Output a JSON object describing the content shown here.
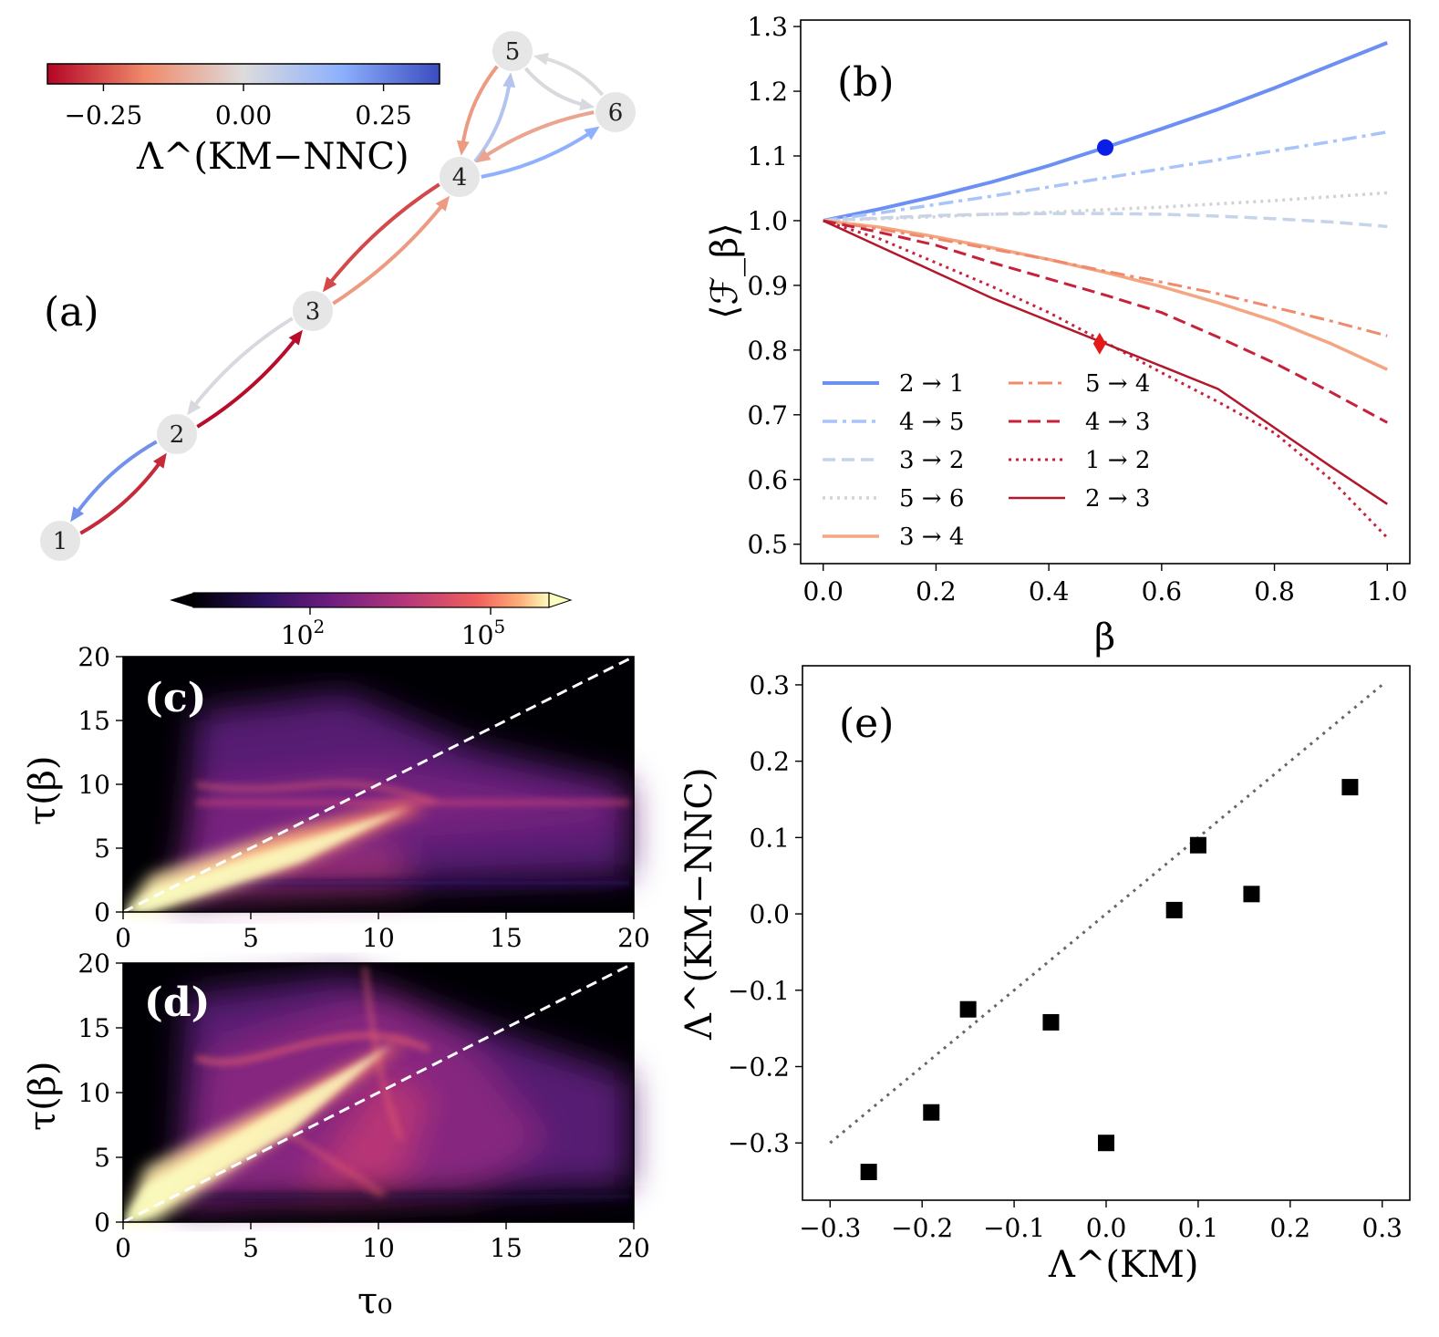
{
  "panel_a": {
    "label": "(a)",
    "colorbar_label": "Λ^(KM−NNC)",
    "colorbar_ticks": [
      "−0.25",
      "0.00",
      "0.25"
    ],
    "colorbar_range": [
      -0.35,
      0.35
    ]
  },
  "magma_colorbar": {
    "ticks": [
      "10^2",
      "10^5"
    ]
  },
  "colors": {
    "blue_strong": "#6b8ff2",
    "blue_mid": "#a9c4f7",
    "blue_pale": "#c6d4ea",
    "grey": "#cfd2d8",
    "orange": "#f4a582",
    "orange_mid": "#ef8a6c",
    "red_mid": "#c7223b",
    "red_dark": "#b2182b"
  },
  "chart_data": [
    {
      "type": "network",
      "title": "(a)",
      "nodes": [
        "1",
        "2",
        "3",
        "4",
        "5",
        "6"
      ],
      "edges": [
        {
          "from": "1",
          "to": "2",
          "value": -0.3
        },
        {
          "from": "2",
          "to": "1",
          "value": 0.23
        },
        {
          "from": "2",
          "to": "3",
          "value": -0.34
        },
        {
          "from": "3",
          "to": "2",
          "value": 0.01
        },
        {
          "from": "3",
          "to": "4",
          "value": -0.14
        },
        {
          "from": "4",
          "to": "3",
          "value": -0.26
        },
        {
          "from": "4",
          "to": "5",
          "value": 0.09
        },
        {
          "from": "5",
          "to": "4",
          "value": -0.14
        },
        {
          "from": "4",
          "to": "6",
          "value": 0.17
        },
        {
          "from": "6",
          "to": "4",
          "value": -0.12
        },
        {
          "from": "5",
          "to": "6",
          "value": 0.01
        },
        {
          "from": "6",
          "to": "5",
          "value": 0.0
        }
      ]
    },
    {
      "type": "line",
      "title": "(b)",
      "xlabel": "β",
      "ylabel": "⟨ℱ_β⟩",
      "xlim": [
        -0.04,
        1.04
      ],
      "ylim": [
        0.47,
        1.31
      ],
      "xticks": [
        "0.0",
        "0.2",
        "0.4",
        "0.6",
        "0.8",
        "1.0"
      ],
      "yticks": [
        "0.5",
        "0.6",
        "0.7",
        "0.8",
        "0.9",
        "1.0",
        "1.1",
        "1.2",
        "1.3"
      ],
      "x": [
        0.0,
        0.1,
        0.2,
        0.3,
        0.4,
        0.5,
        0.6,
        0.7,
        0.8,
        0.9,
        1.0
      ],
      "series": [
        {
          "name": "2 → 1",
          "style": "solid",
          "width": 4,
          "color": "#6b8ff2",
          "values": [
            1.0,
            1.018,
            1.038,
            1.06,
            1.085,
            1.113,
            1.142,
            1.172,
            1.205,
            1.24,
            1.275
          ]
        },
        {
          "name": "4 → 5",
          "style": "dashdot",
          "width": 3.5,
          "color": "#a9c4f7",
          "values": [
            1.0,
            1.012,
            1.025,
            1.038,
            1.052,
            1.066,
            1.08,
            1.094,
            1.108,
            1.122,
            1.137
          ]
        },
        {
          "name": "3 → 2",
          "style": "dashed",
          "width": 3.5,
          "color": "#c6d4ea",
          "values": [
            1.0,
            1.004,
            1.008,
            1.01,
            1.011,
            1.011,
            1.01,
            1.007,
            1.003,
            0.998,
            0.991
          ]
        },
        {
          "name": "5 → 6",
          "style": "dotted",
          "width": 3.5,
          "color": "#cfd2d8",
          "values": [
            1.0,
            1.003,
            1.006,
            1.01,
            1.013,
            1.017,
            1.021,
            1.026,
            1.031,
            1.037,
            1.043
          ]
        },
        {
          "name": "3 → 4",
          "style": "solid",
          "width": 3.5,
          "color": "#f4a582",
          "values": [
            1.0,
            0.99,
            0.975,
            0.958,
            0.94,
            0.92,
            0.898,
            0.873,
            0.845,
            0.81,
            0.77
          ]
        },
        {
          "name": "5 → 4",
          "style": "dashdot",
          "width": 3,
          "color": "#ef8a6c",
          "values": [
            1.0,
            0.987,
            0.972,
            0.956,
            0.94,
            0.922,
            0.905,
            0.887,
            0.866,
            0.845,
            0.822
          ]
        },
        {
          "name": "4 → 3",
          "style": "dashed",
          "width": 3,
          "color": "#c7223b",
          "values": [
            1.0,
            0.982,
            0.962,
            0.935,
            0.91,
            0.885,
            0.858,
            0.82,
            0.78,
            0.735,
            0.688
          ]
        },
        {
          "name": "1 → 2",
          "style": "dotted",
          "width": 3,
          "color": "#c7223b",
          "values": [
            1.0,
            0.972,
            0.935,
            0.898,
            0.858,
            0.812,
            0.765,
            0.72,
            0.672,
            0.6,
            0.51
          ]
        },
        {
          "name": "2 → 3",
          "style": "solid",
          "width": 2.5,
          "color": "#b2182b",
          "values": [
            1.0,
            0.96,
            0.92,
            0.88,
            0.845,
            0.81,
            0.775,
            0.74,
            0.68,
            0.62,
            0.562
          ]
        }
      ],
      "markers": [
        {
          "shape": "circle",
          "x": 0.5,
          "y": 1.113,
          "color": "#0a1ee6"
        },
        {
          "shape": "diamond",
          "x": 0.49,
          "y": 0.81,
          "color": "#e61919"
        }
      ]
    },
    {
      "type": "heatmap",
      "title": "(c)",
      "xlabel": "",
      "ylabel": "τ(β)",
      "xlim": [
        0,
        20
      ],
      "ylim": [
        0,
        20
      ],
      "xticks": [
        "0",
        "5",
        "10",
        "15",
        "20"
      ],
      "yticks": [
        "0",
        "5",
        "10",
        "15",
        "20"
      ],
      "reference_line": "y = x"
    },
    {
      "type": "heatmap",
      "title": "(d)",
      "xlabel": "τ₀",
      "ylabel": "τ(β)",
      "xlim": [
        0,
        20
      ],
      "ylim": [
        0,
        20
      ],
      "xticks": [
        "0",
        "5",
        "10",
        "15",
        "20"
      ],
      "yticks": [
        "0",
        "5",
        "10",
        "15",
        "20"
      ],
      "reference_line": "y = x"
    },
    {
      "type": "scatter",
      "title": "(e)",
      "xlabel": "Λ^(KM)",
      "ylabel": "Λ^(KM−NNC)",
      "xlim": [
        -0.33,
        0.33
      ],
      "ylim": [
        -0.375,
        0.325
      ],
      "xticks": [
        "−0.3",
        "−0.2",
        "−0.1",
        "0.0",
        "0.1",
        "0.2",
        "0.3"
      ],
      "yticks": [
        "−0.3",
        "−0.2",
        "−0.1",
        "0.0",
        "0.1",
        "0.2",
        "0.3"
      ],
      "points": [
        {
          "x": -0.258,
          "y": -0.338
        },
        {
          "x": -0.19,
          "y": -0.26
        },
        {
          "x": -0.15,
          "y": -0.125
        },
        {
          "x": -0.06,
          "y": -0.142
        },
        {
          "x": 0.0,
          "y": -0.3
        },
        {
          "x": 0.074,
          "y": 0.005
        },
        {
          "x": 0.1,
          "y": 0.09
        },
        {
          "x": 0.158,
          "y": 0.026
        },
        {
          "x": 0.265,
          "y": 0.166
        }
      ],
      "reference_line": {
        "x": [
          -0.3,
          0.3
        ],
        "y": [
          -0.3,
          0.3
        ]
      }
    }
  ]
}
